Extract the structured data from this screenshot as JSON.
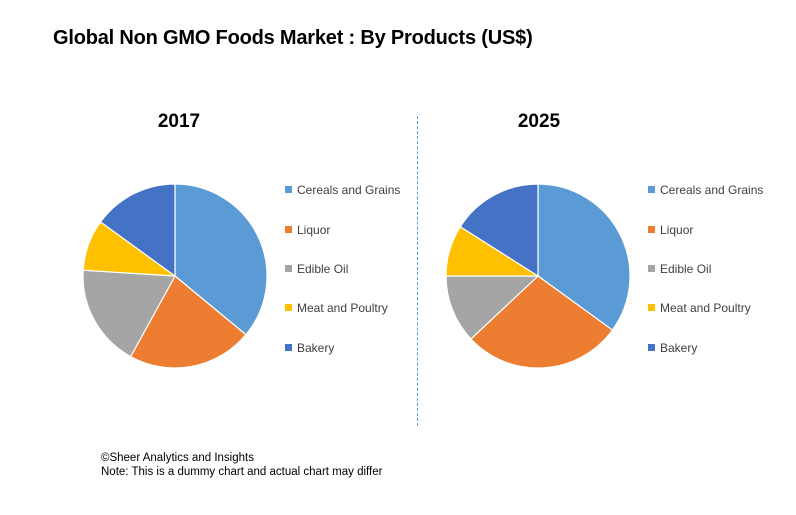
{
  "chart_data": {
    "type": "pie",
    "title": "Global Non GMO Foods Market : By Products (US$)",
    "categories": [
      "Cereals and Grains",
      "Liquor",
      "Edible Oil",
      "Meat and Poultry",
      "Bakery"
    ],
    "colors": [
      "#5b9bd5",
      "#ed7d31",
      "#a5a5a5",
      "#ffc000",
      "#4472c4"
    ],
    "legend_position": "right",
    "series": [
      {
        "name": "2017",
        "values": [
          36,
          22,
          18,
          9,
          15
        ]
      },
      {
        "name": "2025",
        "values": [
          35,
          28,
          12,
          9,
          16
        ]
      }
    ]
  },
  "footer": {
    "copyright": "©Sheer Analytics and Insights",
    "note": "Note: This is a dummy chart and actual chart may differ"
  }
}
